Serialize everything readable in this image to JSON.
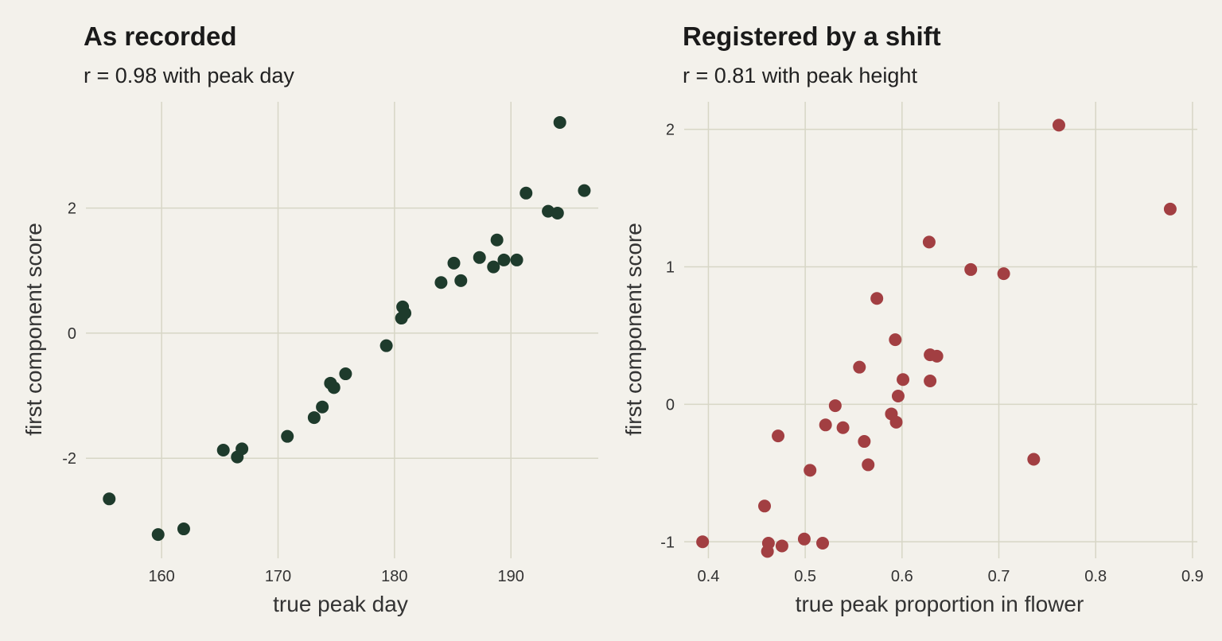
{
  "chart_data": [
    {
      "type": "scatter",
      "title": "As recorded",
      "subtitle": "r = 0.98 with peak day",
      "xlabel": "true peak day",
      "ylabel": "first component score",
      "xlim": [
        153.5,
        197.5
      ],
      "ylim": [
        -3.6,
        3.7
      ],
      "xticks": [
        160,
        170,
        180,
        190
      ],
      "xtick_labels": [
        "160",
        "170",
        "180",
        "190"
      ],
      "yticks": [
        -2,
        0,
        2
      ],
      "ytick_labels": [
        "-2",
        "0",
        "2"
      ],
      "grid": true,
      "color": "#1e3b2c",
      "points": [
        {
          "x": 155.5,
          "y": -2.65
        },
        {
          "x": 159.7,
          "y": -3.22
        },
        {
          "x": 161.9,
          "y": -3.13
        },
        {
          "x": 165.3,
          "y": -1.87
        },
        {
          "x": 166.5,
          "y": -1.98
        },
        {
          "x": 166.9,
          "y": -1.85
        },
        {
          "x": 170.8,
          "y": -1.65
        },
        {
          "x": 173.1,
          "y": -1.35
        },
        {
          "x": 173.8,
          "y": -1.18
        },
        {
          "x": 174.5,
          "y": -0.8
        },
        {
          "x": 174.8,
          "y": -0.87
        },
        {
          "x": 175.8,
          "y": -0.65
        },
        {
          "x": 179.3,
          "y": -0.2
        },
        {
          "x": 180.6,
          "y": 0.24
        },
        {
          "x": 180.7,
          "y": 0.42
        },
        {
          "x": 180.9,
          "y": 0.32
        },
        {
          "x": 184.0,
          "y": 0.81
        },
        {
          "x": 185.1,
          "y": 1.12
        },
        {
          "x": 185.7,
          "y": 0.84
        },
        {
          "x": 187.3,
          "y": 1.21
        },
        {
          "x": 188.5,
          "y": 1.06
        },
        {
          "x": 188.8,
          "y": 1.49
        },
        {
          "x": 189.4,
          "y": 1.17
        },
        {
          "x": 190.5,
          "y": 1.17
        },
        {
          "x": 191.3,
          "y": 2.24
        },
        {
          "x": 193.2,
          "y": 1.95
        },
        {
          "x": 194.0,
          "y": 1.92
        },
        {
          "x": 194.2,
          "y": 3.37
        },
        {
          "x": 196.3,
          "y": 2.28
        }
      ]
    },
    {
      "type": "scatter",
      "title": "Registered by a shift",
      "subtitle": "r = 0.81 with peak height",
      "xlabel": "true peak proportion in flower",
      "ylabel": "first component score",
      "xlim": [
        0.375,
        0.905
      ],
      "ylim": [
        -1.12,
        2.2
      ],
      "xticks": [
        0.4,
        0.5,
        0.6,
        0.7,
        0.8,
        0.9
      ],
      "xtick_labels": [
        "0.4",
        "0.5",
        "0.6",
        "0.7",
        "0.8",
        "0.9"
      ],
      "yticks": [
        -1,
        0,
        1,
        2
      ],
      "ytick_labels": [
        "-1",
        "0",
        "1",
        "2"
      ],
      "grid": true,
      "color": "#a23f42",
      "points": [
        {
          "x": 0.394,
          "y": -1.0
        },
        {
          "x": 0.458,
          "y": -0.74
        },
        {
          "x": 0.461,
          "y": -1.07
        },
        {
          "x": 0.462,
          "y": -1.01
        },
        {
          "x": 0.472,
          "y": -0.23
        },
        {
          "x": 0.476,
          "y": -1.03
        },
        {
          "x": 0.499,
          "y": -0.98
        },
        {
          "x": 0.505,
          "y": -0.48
        },
        {
          "x": 0.518,
          "y": -1.01
        },
        {
          "x": 0.521,
          "y": -0.15
        },
        {
          "x": 0.531,
          "y": -0.01
        },
        {
          "x": 0.539,
          "y": -0.17
        },
        {
          "x": 0.556,
          "y": 0.27
        },
        {
          "x": 0.561,
          "y": -0.27
        },
        {
          "x": 0.565,
          "y": -0.44
        },
        {
          "x": 0.574,
          "y": 0.77
        },
        {
          "x": 0.589,
          "y": -0.07
        },
        {
          "x": 0.593,
          "y": 0.47
        },
        {
          "x": 0.594,
          "y": -0.13
        },
        {
          "x": 0.596,
          "y": 0.06
        },
        {
          "x": 0.601,
          "y": 0.18
        },
        {
          "x": 0.628,
          "y": 1.18
        },
        {
          "x": 0.629,
          "y": 0.17
        },
        {
          "x": 0.629,
          "y": 0.36
        },
        {
          "x": 0.636,
          "y": 0.35
        },
        {
          "x": 0.671,
          "y": 0.98
        },
        {
          "x": 0.705,
          "y": 0.95
        },
        {
          "x": 0.736,
          "y": -0.4
        },
        {
          "x": 0.762,
          "y": 2.03
        },
        {
          "x": 0.877,
          "y": 1.42
        }
      ]
    }
  ]
}
